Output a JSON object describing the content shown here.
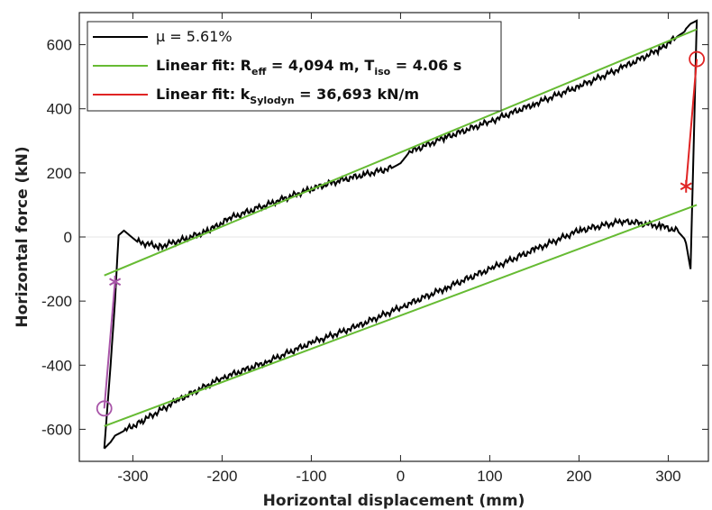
{
  "chart_data": {
    "type": "line",
    "title": "",
    "xlabel": "Horizontal displacement (mm)",
    "ylabel": "Horizontal force (kN)",
    "xlim": [
      -360,
      345
    ],
    "ylim": [
      -700,
      700
    ],
    "xticks": [
      -300,
      -200,
      -100,
      0,
      100,
      200,
      300
    ],
    "yticks": [
      -600,
      -400,
      -200,
      0,
      200,
      400,
      600
    ],
    "grid": false,
    "zero_line": true,
    "legend_position": "top-left",
    "legend": [
      {
        "series": "hysteresis",
        "main": "μ = 5.61%",
        "sub": ""
      },
      {
        "series": "fit_reff",
        "main": "Linear fit: R",
        "sub": "eff",
        "mid": " = 4,094 m, T",
        "sub2": "iso",
        "tail": " = 4.06 s"
      },
      {
        "series": "fit_k",
        "main": "Linear fit: k",
        "sub": "Sylodyn",
        "tail": " = 36,693 kN/m"
      }
    ],
    "series": [
      {
        "name": "μ = 5.61%",
        "color": "#000000",
        "style": "solid-noisy",
        "x": [
          -332,
          -325,
          -320,
          -316,
          -310,
          -295,
          -270,
          -240,
          -215,
          -190,
          -160,
          -130,
          -100,
          -70,
          -40,
          -10,
          0,
          10,
          50,
          100,
          150,
          200,
          250,
          290,
          310,
          318,
          320,
          325,
          332,
          325,
          320,
          318,
          310,
          290,
          250,
          200,
          150,
          100,
          50,
          0,
          -50,
          -100,
          -150,
          -200,
          -250,
          -290,
          -310,
          -320,
          -325,
          -332
        ],
        "y": [
          -660,
          -400,
          -200,
          5,
          20,
          -15,
          -30,
          -5,
          20,
          60,
          90,
          120,
          150,
          175,
          195,
          215,
          230,
          265,
          310,
          360,
          415,
          470,
          530,
          585,
          625,
          640,
          650,
          665,
          675,
          -100,
          -20,
          -5,
          20,
          35,
          50,
          20,
          -40,
          -100,
          -160,
          -220,
          -280,
          -330,
          -390,
          -440,
          -510,
          -575,
          -605,
          -620,
          -640,
          -660
        ]
      },
      {
        "name": "Linear fit: Reff = 4,094 m, Tiso = 4.06 s",
        "color": "#66bb33",
        "style": "solid",
        "segments": [
          {
            "x": [
              -332,
              332
            ],
            "y": [
              -120,
              648
            ]
          },
          {
            "x": [
              -332,
              332
            ],
            "y": [
              -590,
              100
            ]
          }
        ]
      },
      {
        "name": "Linear fit: kSylodyn = 36,693 kN/m",
        "color": "#e02424",
        "style": "solid",
        "x": [
          320,
          332
        ],
        "y": [
          158,
          555
        ]
      },
      {
        "name": "",
        "color": "#a855a8",
        "style": "solid",
        "x": [
          -320,
          -332
        ],
        "y": [
          -140,
          -535
        ]
      }
    ],
    "markers": [
      {
        "series": "red",
        "shape": "asterisk",
        "x": 320,
        "y": 158,
        "color": "#e02424"
      },
      {
        "series": "red",
        "shape": "circle",
        "x": 332,
        "y": 555,
        "color": "#e02424"
      },
      {
        "series": "purple",
        "shape": "asterisk",
        "x": -320,
        "y": -140,
        "color": "#a855a8"
      },
      {
        "series": "purple",
        "shape": "circle",
        "x": -332,
        "y": -535,
        "color": "#a855a8"
      }
    ]
  }
}
